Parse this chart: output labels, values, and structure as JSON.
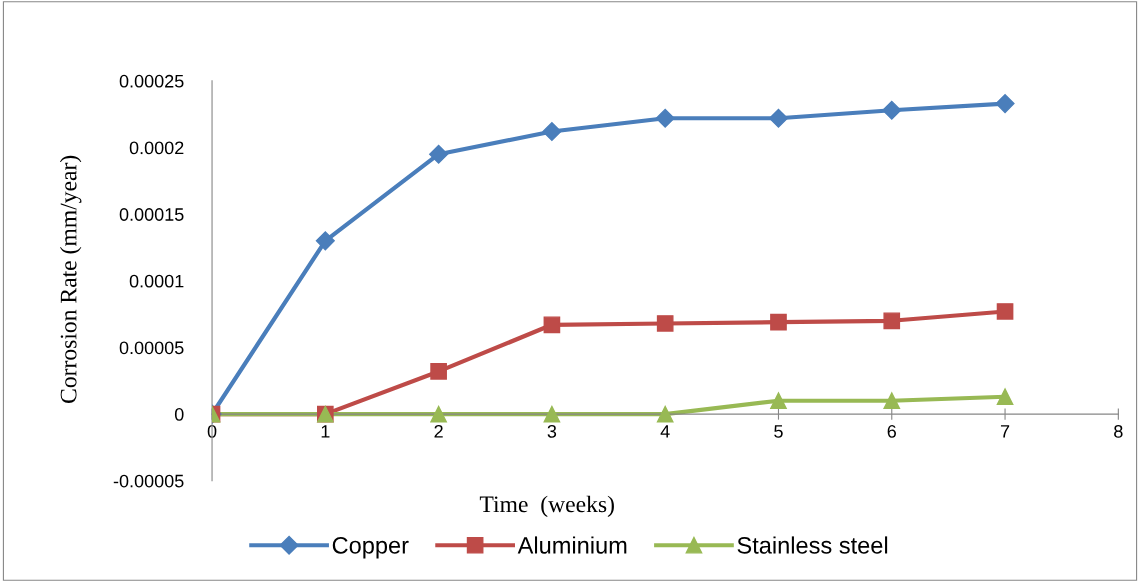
{
  "chart_data": {
    "type": "line",
    "xlabel": "Time  (weeks)",
    "ylabel": "Corrosion Rate (mm/year)",
    "x": [
      0,
      1,
      2,
      3,
      4,
      5,
      6,
      7
    ],
    "series": [
      {
        "name": "Copper",
        "color": "#4a7ebb",
        "marker": "diamond",
        "values": [
          0,
          0.00013,
          0.000195,
          0.000212,
          0.000222,
          0.000222,
          0.000228,
          0.000233
        ]
      },
      {
        "name": "Aluminium",
        "color": "#be4b48",
        "marker": "square",
        "values": [
          0,
          0,
          3.2e-05,
          6.7e-05,
          6.8e-05,
          6.9e-05,
          7e-05,
          7.7e-05
        ]
      },
      {
        "name": "Stainless steel",
        "color": "#98b954",
        "marker": "triangle",
        "values": [
          0,
          0,
          0,
          0,
          0,
          1e-05,
          1e-05,
          1.3e-05
        ]
      }
    ],
    "xlim": [
      0,
      8
    ],
    "xticks": [
      0,
      1,
      2,
      3,
      4,
      5,
      6,
      7,
      8
    ],
    "ylim": [
      -5e-05,
      0.00025
    ],
    "yticks": [
      {
        "value": -5e-05,
        "label": "-0.00005"
      },
      {
        "value": 0,
        "label": "0"
      },
      {
        "value": 5e-05,
        "label": "0.00005"
      },
      {
        "value": 0.0001,
        "label": "0.0001"
      },
      {
        "value": 0.00015,
        "label": "0.00015"
      },
      {
        "value": 0.0002,
        "label": "0.0002"
      },
      {
        "value": 0.00025,
        "label": "0.00025"
      }
    ],
    "grid": false,
    "legend": "bottom",
    "line_style": "solid"
  }
}
